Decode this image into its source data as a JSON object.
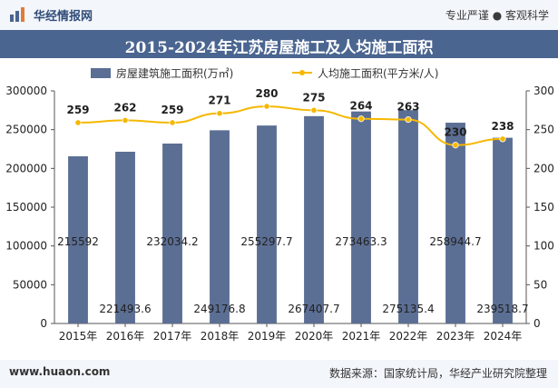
{
  "header": {
    "brand": "华经情报网",
    "slogan": "专业严谨 ● 客观科学"
  },
  "footer": {
    "site": "www.huaon.com",
    "source": "数据来源：国家统计局，华经产业研究院整理"
  },
  "colors": {
    "bar": "#5b6e94",
    "line": "#f5b800",
    "title_bg": "#4a6590"
  },
  "chart_data": {
    "type": "bar",
    "title": "2015-2024年江苏房屋施工及人均施工面积",
    "categories": [
      "2015年",
      "2016年",
      "2017年",
      "2018年",
      "2019年",
      "2020年",
      "2021年",
      "2022年",
      "2023年",
      "2024年"
    ],
    "series": [
      {
        "name": "房屋建筑施工面积(万㎡)",
        "type": "bar",
        "axis": "left",
        "values": [
          215592,
          221493.6,
          232034.2,
          249176.8,
          255297.7,
          267407.7,
          273463.3,
          275135.4,
          258944.7,
          239518.7
        ]
      },
      {
        "name": "人均施工面积(平方米/人)",
        "type": "line",
        "axis": "right",
        "values": [
          259,
          262,
          259,
          271,
          280,
          275,
          264,
          263,
          230,
          238
        ]
      }
    ],
    "y_left": {
      "range": [
        0,
        300000
      ],
      "ticks": [
        "0",
        "50000",
        "100000",
        "150000",
        "200000",
        "250000",
        "300000"
      ]
    },
    "y_right": {
      "range": [
        0,
        300
      ],
      "ticks": [
        "0",
        "50",
        "100",
        "150",
        "200",
        "250",
        "300"
      ]
    },
    "legend_position": "top",
    "grid": false
  }
}
